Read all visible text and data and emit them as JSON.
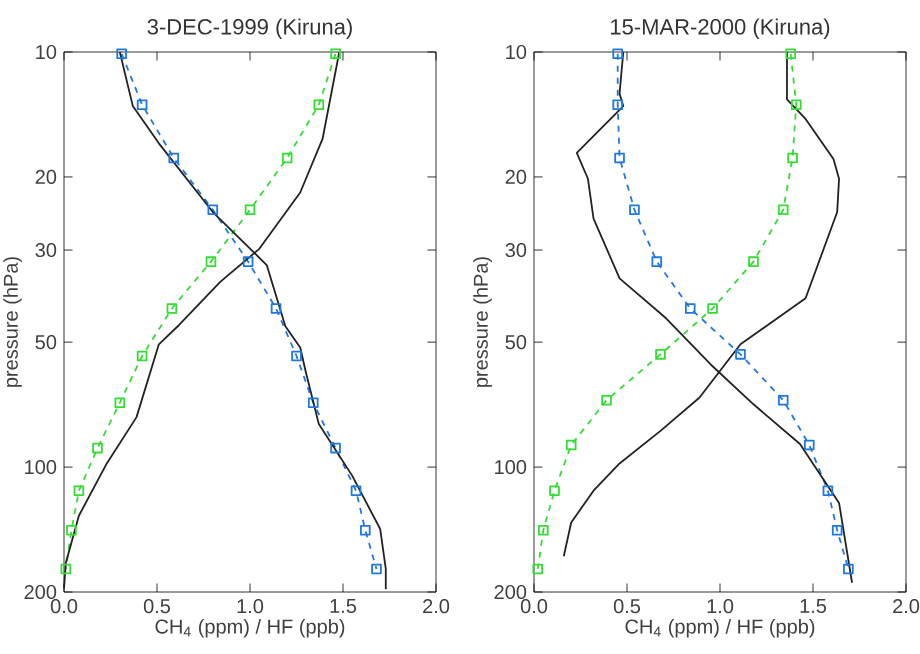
{
  "chart_data": [
    {
      "type": "line",
      "title": "3-DEC-1999 (Kiruna)",
      "xlabel": "CH$_{4}$ (ppm) / HF (ppb)",
      "ylabel": "pressure (hPa)",
      "log": "y",
      "xlim": [
        0,
        2
      ],
      "ylim": [
        200,
        10
      ],
      "xticks": [
        {
          "value": 0,
          "label": "0.0"
        },
        {
          "value": 0.5,
          "label": "0.5"
        },
        {
          "value": 1,
          "label": "1.0"
        },
        {
          "value": 1.5,
          "label": "1.5"
        },
        {
          "value": 2,
          "label": "2.0"
        }
      ],
      "yticks": [
        10,
        20,
        30,
        50,
        100,
        200
      ],
      "series": [
        {
          "color": "#1e78e0",
          "marker": "square",
          "line_style": "dashed",
          "x": [
            0.31,
            0.42,
            0.59,
            0.8,
            0.99,
            1.14,
            1.25,
            1.34,
            1.46,
            1.57,
            1.62,
            1.68
          ],
          "values": [
            10.1,
            13.4,
            18,
            24,
            32,
            41.5,
            54,
            70,
            90,
            114,
            142,
            176
          ]
        },
        {
          "color": "#33dd33",
          "marker": "square",
          "line_style": "dashed",
          "x": [
            1.46,
            1.37,
            1.2,
            1.0,
            0.79,
            0.58,
            0.42,
            0.3,
            0.18,
            0.08,
            0.04,
            0.01
          ],
          "values": [
            10.1,
            13.4,
            18,
            24,
            32,
            41.5,
            54,
            70,
            90,
            114,
            142,
            176
          ]
        },
        {
          "color": "#222222",
          "marker": "none",
          "line_style": "solid",
          "x": [
            0.3,
            0.37,
            0.51,
            0.8,
            1.09,
            1.19,
            1.27,
            1.3,
            1.37,
            1.55,
            1.7,
            1.73,
            1.73
          ],
          "values": [
            10,
            13.5,
            16.6,
            24.3,
            32.6,
            45.8,
            51.5,
            59,
            78.8,
            105,
            141,
            176,
            197
          ]
        },
        {
          "color": "#222222",
          "marker": "none",
          "line_style": "solid",
          "x": [
            1.48,
            1.39,
            1.27,
            1.05,
            0.84,
            0.62,
            0.51,
            0.39,
            0.23,
            0.08,
            0.01,
            0
          ],
          "values": [
            10,
            16.2,
            21.8,
            29.8,
            35.8,
            45.4,
            50.6,
            75.8,
            98,
            131,
            170,
            196
          ]
        }
      ]
    },
    {
      "type": "line",
      "title": "15-MAR-2000 (Kiruna)",
      "xlabel": "CH$_{4}$ (ppm) / HF (ppb)",
      "ylabel": "pressure (hPa)",
      "log": "y",
      "xlim": [
        0,
        2
      ],
      "ylim": [
        200,
        10
      ],
      "xticks": [
        {
          "value": 0,
          "label": "0.0"
        },
        {
          "value": 0.5,
          "label": "0.5"
        },
        {
          "value": 1,
          "label": "1.0"
        },
        {
          "value": 1.5,
          "label": "1.5"
        },
        {
          "value": 2,
          "label": "2.0"
        }
      ],
      "yticks": [
        10,
        20,
        30,
        50,
        100,
        200
      ],
      "series": [
        {
          "color": "#1e78e0",
          "marker": "square",
          "line_style": "dashed",
          "x": [
            0.45,
            0.45,
            0.46,
            0.54,
            0.66,
            0.84,
            1.11,
            1.34,
            1.48,
            1.58,
            1.63,
            1.69
          ],
          "values": [
            10.1,
            13.4,
            18,
            24,
            32,
            41.5,
            53.5,
            69,
            88.5,
            114,
            142,
            176
          ]
        },
        {
          "color": "#33dd33",
          "marker": "square",
          "line_style": "dashed",
          "x": [
            1.38,
            1.41,
            1.39,
            1.34,
            1.18,
            0.96,
            0.68,
            0.39,
            0.2,
            0.11,
            0.05,
            0.02
          ],
          "values": [
            10.1,
            13.4,
            18,
            24,
            32,
            41.5,
            53.5,
            69,
            88.5,
            114,
            142,
            176
          ]
        },
        {
          "color": "#222222",
          "marker": "none",
          "line_style": "solid",
          "x": [
            1.36,
            1.36,
            1.46,
            1.61,
            1.64,
            1.63,
            1.46,
            1.11,
            0.89,
            0.68,
            0.46,
            0.32,
            0.2,
            0.16
          ],
          "values": [
            10,
            13,
            14.5,
            18.1,
            20.2,
            24.3,
            39.2,
            50.6,
            68,
            81.8,
            98,
            114,
            136,
            164
          ]
        },
        {
          "color": "#222222",
          "marker": "none",
          "line_style": "solid",
          "x": [
            0.48,
            0.46,
            0.48,
            0.23,
            0.29,
            0.32,
            0.46,
            0.71,
            0.95,
            1.18,
            1.43,
            1.64,
            1.71
          ],
          "values": [
            10,
            12.6,
            13.5,
            17.5,
            20.2,
            25.2,
            35.1,
            43.8,
            56.6,
            70.6,
            88,
            122,
            190
          ]
        }
      ]
    }
  ]
}
